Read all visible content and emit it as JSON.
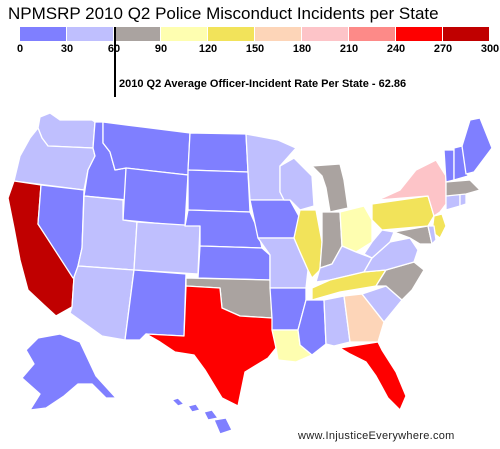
{
  "title": "NPMSRP 2010 Q2 Police Misconduct Incidents per State",
  "legend": {
    "ticks": [
      "0",
      "30",
      "60",
      "90",
      "120",
      "150",
      "180",
      "210",
      "240",
      "270",
      "300"
    ],
    "colors": [
      "#7f7fff",
      "#bfbffe",
      "#aaa3a0",
      "#fefeb0",
      "#f2e35a",
      "#fdd5b8",
      "#fdc4c8",
      "#fd8a88",
      "#fe0000",
      "#c00000"
    ]
  },
  "average_label": "2010 Q2 Average Officer-Incident Rate Per State - 62.86",
  "credit": "www.InjusticeEverywhere.com",
  "states": [
    {
      "id": "WA",
      "color": "#bfbffe"
    },
    {
      "id": "OR",
      "color": "#bfbffe"
    },
    {
      "id": "CA",
      "color": "#c00000"
    },
    {
      "id": "NV",
      "color": "#7f7fff"
    },
    {
      "id": "ID",
      "color": "#7f7fff"
    },
    {
      "id": "MT",
      "color": "#7f7fff"
    },
    {
      "id": "WY",
      "color": "#7f7fff"
    },
    {
      "id": "UT",
      "color": "#bfbffe"
    },
    {
      "id": "AZ",
      "color": "#bfbffe"
    },
    {
      "id": "CO",
      "color": "#bfbffe"
    },
    {
      "id": "NM",
      "color": "#7f7fff"
    },
    {
      "id": "ND",
      "color": "#7f7fff"
    },
    {
      "id": "SD",
      "color": "#7f7fff"
    },
    {
      "id": "NE",
      "color": "#7f7fff"
    },
    {
      "id": "KS",
      "color": "#7f7fff"
    },
    {
      "id": "OK",
      "color": "#aaa3a0"
    },
    {
      "id": "TX",
      "color": "#fe0000"
    },
    {
      "id": "MN",
      "color": "#bfbffe"
    },
    {
      "id": "IA",
      "color": "#7f7fff"
    },
    {
      "id": "MO",
      "color": "#bfbffe"
    },
    {
      "id": "AR",
      "color": "#7f7fff"
    },
    {
      "id": "LA",
      "color": "#fefeb0"
    },
    {
      "id": "WI",
      "color": "#bfbffe"
    },
    {
      "id": "IL",
      "color": "#f2e35a"
    },
    {
      "id": "MI",
      "color": "#aaa3a0"
    },
    {
      "id": "IN",
      "color": "#aaa3a0"
    },
    {
      "id": "OH",
      "color": "#fefeb0"
    },
    {
      "id": "KY",
      "color": "#bfbffe"
    },
    {
      "id": "TN",
      "color": "#f2e35a"
    },
    {
      "id": "MS",
      "color": "#7f7fff"
    },
    {
      "id": "AL",
      "color": "#bfbffe"
    },
    {
      "id": "GA",
      "color": "#fdd5b8"
    },
    {
      "id": "FL",
      "color": "#fe0000"
    },
    {
      "id": "SC",
      "color": "#bfbffe"
    },
    {
      "id": "NC",
      "color": "#aaa3a0"
    },
    {
      "id": "VA",
      "color": "#bfbffe"
    },
    {
      "id": "WV",
      "color": "#bfbffe"
    },
    {
      "id": "PA",
      "color": "#f2e35a"
    },
    {
      "id": "NY",
      "color": "#fdc4c8"
    },
    {
      "id": "NJ",
      "color": "#f2e35a"
    },
    {
      "id": "MD",
      "color": "#aaa3a0"
    },
    {
      "id": "DE",
      "color": "#bfbffe"
    },
    {
      "id": "CT",
      "color": "#bfbffe"
    },
    {
      "id": "RI",
      "color": "#bfbffe"
    },
    {
      "id": "MA",
      "color": "#aaa3a0"
    },
    {
      "id": "VT",
      "color": "#7f7fff"
    },
    {
      "id": "NH",
      "color": "#7f7fff"
    },
    {
      "id": "ME",
      "color": "#7f7fff"
    },
    {
      "id": "AK",
      "color": "#7f7fff"
    },
    {
      "id": "HI",
      "color": "#7f7fff"
    }
  ]
}
